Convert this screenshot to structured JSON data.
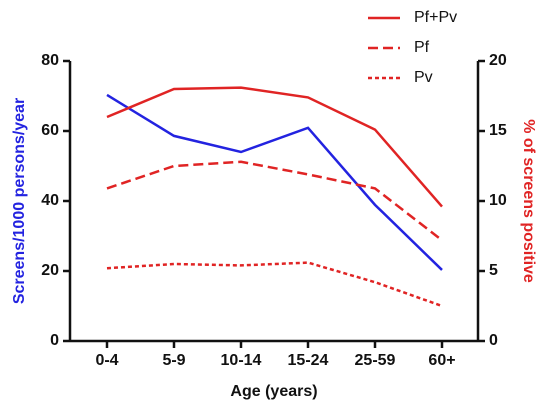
{
  "chart_data": {
    "type": "line",
    "xlabel": "Age (years)",
    "ylabel": "Screens/1000 persons/year",
    "ylabel_color": "#2323e0",
    "y2label": "% of screens positive",
    "y2label_color": "#e02424",
    "categories": [
      "0-4",
      "5-9",
      "10-14",
      "15-24",
      "25-59",
      "60+"
    ],
    "ylim": [
      0,
      80
    ],
    "yticks": [
      0,
      20,
      40,
      60,
      80
    ],
    "y2lim": [
      0,
      20
    ],
    "y2ticks": [
      0,
      5,
      10,
      15,
      20
    ],
    "legend": "top-right",
    "series": [
      {
        "color": "#2323e0",
        "dash": "solid",
        "axis": "y",
        "values": [
          70.3,
          58.6,
          54,
          60.9,
          38.9,
          20.3
        ]
      },
      {
        "name": "Pf+Pv",
        "color": "#e02424",
        "dash": "solid",
        "axis": "y2",
        "values": [
          16,
          18,
          18.1,
          17.4,
          15.1,
          9.6
        ]
      },
      {
        "name": "Pf",
        "color": "#e02424",
        "dash": "dashed",
        "axis": "y2",
        "values": [
          10.9,
          12.5,
          12.8,
          11.9,
          10.9,
          7.2
        ]
      },
      {
        "name": "Pv",
        "color": "#e02424",
        "dash": "dotted",
        "axis": "y2",
        "values": [
          5.2,
          5.5,
          5.4,
          5.6,
          4.2,
          2.5
        ]
      }
    ]
  }
}
